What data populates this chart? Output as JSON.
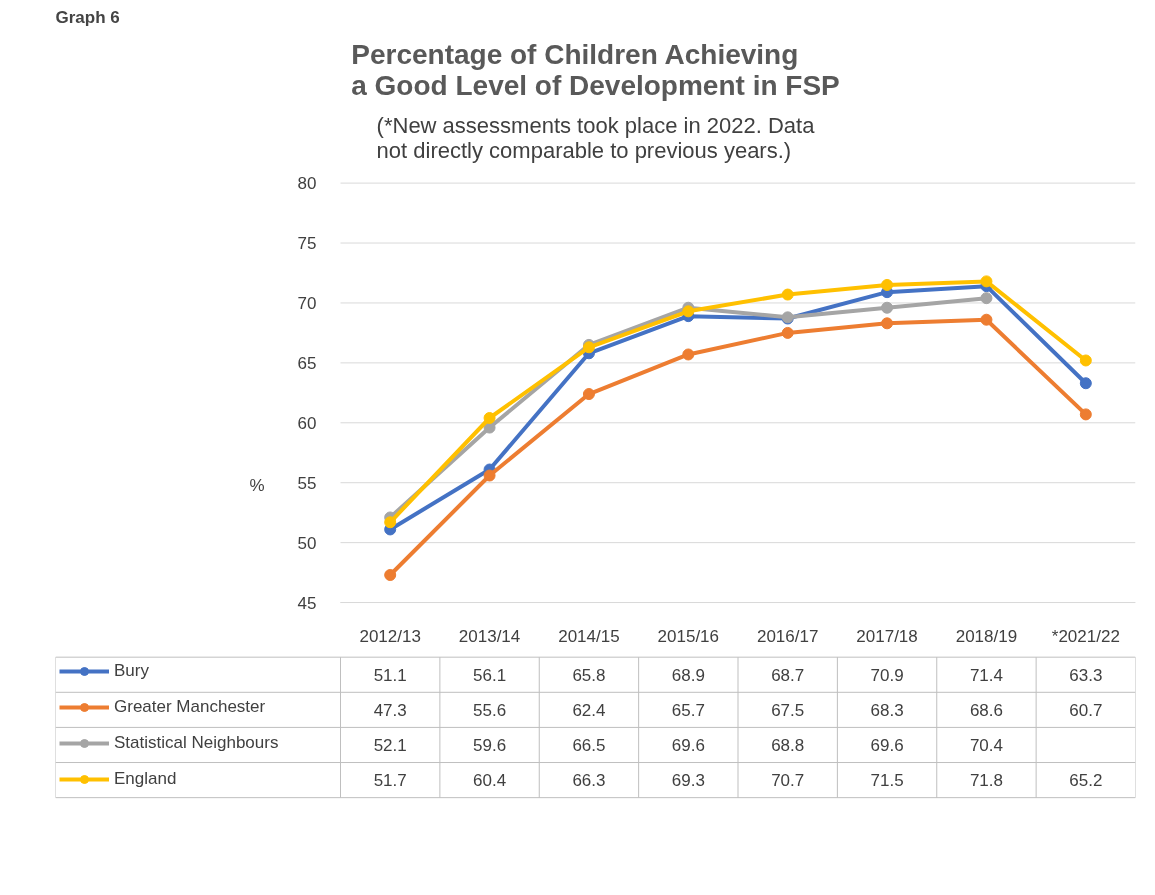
{
  "chart_data": {
    "type": "line",
    "title": "Percentage of Children Achieving a Good Level of Development in FSP",
    "subtitle": "(*New assessments took place in 2022. Data not directly comparable to previous years.)",
    "ylabel": "%",
    "annotations": [
      "Graph 6"
    ],
    "categories": [
      "2012/13",
      "2013/14",
      "2014/15",
      "2015/16",
      "2016/17",
      "2017/18",
      "2018/19",
      "*2021/22"
    ],
    "series": [
      {
        "name": "Bury",
        "color": "#4472c4",
        "values": [
          51.1,
          56.1,
          65.8,
          68.9,
          68.7,
          70.9,
          71.4,
          63.3
        ]
      },
      {
        "name": "Greater Manchester",
        "color": "#ed7d31",
        "values": [
          47.3,
          55.6,
          62.4,
          65.7,
          67.5,
          68.3,
          68.6,
          60.7
        ]
      },
      {
        "name": "Statistical Neighbours",
        "color": "#a5a5a5",
        "values": [
          52.1,
          59.6,
          66.5,
          69.6,
          68.8,
          69.6,
          70.4,
          null
        ]
      },
      {
        "name": "England",
        "color": "#ffc000",
        "values": [
          51.7,
          60.4,
          66.3,
          69.3,
          70.7,
          71.5,
          71.8,
          65.2
        ]
      }
    ],
    "ylim": [
      45,
      80
    ],
    "yticks": [
      45,
      50,
      55,
      60,
      65,
      70,
      75,
      80
    ],
    "grid": "y",
    "legend": "bottom",
    "marker": "circle",
    "line_style": "solid",
    "data_labels": true
  }
}
